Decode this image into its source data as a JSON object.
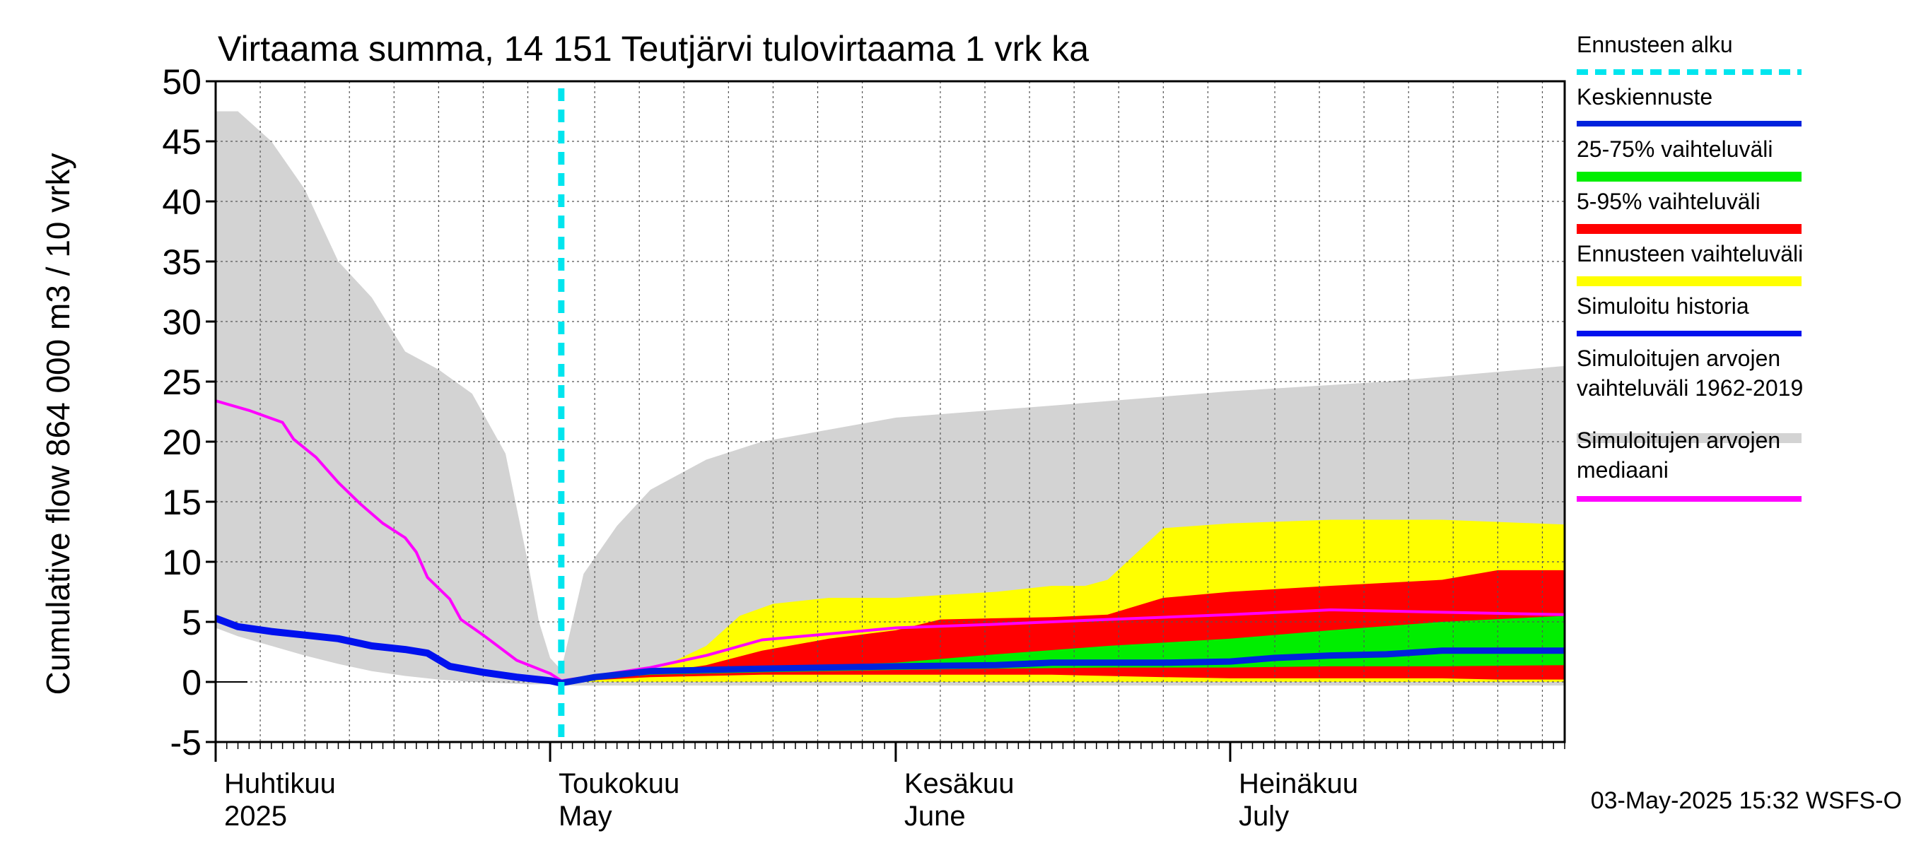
{
  "chart_data": {
    "type": "area",
    "title": "Virtaama summa, 14 151 Teutjärvi tulovirtaama 1 vrk ka",
    "ylabel": "Cumulative flow    864 000 m3 / 10 vrky",
    "ylim": [
      -5,
      50
    ],
    "yticks": [
      -5,
      0,
      5,
      10,
      15,
      20,
      25,
      30,
      35,
      40,
      45,
      50
    ],
    "grid": true,
    "legend_position": "right",
    "x_domain": [
      "2025-04-01",
      "2025-07-31"
    ],
    "forecast_start": "2025-05-02",
    "month_labels": [
      {
        "date": "2025-04-01",
        "fi": "Huhtikuu",
        "en": "2025"
      },
      {
        "date": "2025-05-01",
        "fi": "Toukokuu",
        "en": "May"
      },
      {
        "date": "2025-06-01",
        "fi": "Kesäkuu",
        "en": "June"
      },
      {
        "date": "2025-07-01",
        "fi": "Heinäkuu",
        "en": "July"
      }
    ],
    "timestamp": "03-May-2025 15:32 WSFS-O",
    "legend": [
      {
        "key": "forecast_start",
        "label": "Ennusteen alku",
        "color": "#00e5ee",
        "style": "dashed"
      },
      {
        "key": "mean_forecast",
        "label": "Keskiennuste",
        "color": "#0022dd",
        "style": "line"
      },
      {
        "key": "p25_75",
        "label": "25-75% vaihteluväli",
        "color": "#00ee00",
        "style": "band"
      },
      {
        "key": "p5_95",
        "label": "5-95% vaihteluväli",
        "color": "#ff0000",
        "style": "band"
      },
      {
        "key": "forecast_range",
        "label": "Ennusteen vaihteluväli",
        "color": "#ffff00",
        "style": "band"
      },
      {
        "key": "sim_history",
        "label": "Simuloitu historia",
        "color": "#0011ee",
        "style": "line"
      },
      {
        "key": "hist_range",
        "label": "Simuloitujen arvojen vaihteluväli 1962-2019",
        "lines": [
          "Simuloitujen arvojen",
          "vaihteluväli 1962-2019"
        ],
        "color": "#d3d3d3",
        "style": "band"
      },
      {
        "key": "hist_median",
        "label": "Simuloitujen arvojen mediaani",
        "lines": [
          "Simuloitujen arvojen",
          "mediaani"
        ],
        "color": "#ff00ff",
        "style": "line"
      }
    ],
    "series": {
      "hist_range": {
        "x": [
          "2025-04-01",
          "2025-04-03",
          "2025-04-06",
          "2025-04-09",
          "2025-04-12",
          "2025-04-15",
          "2025-04-18",
          "2025-04-21",
          "2025-04-24",
          "2025-04-27",
          "2025-04-29",
          "2025-04-30",
          "2025-05-01",
          "2025-05-02",
          "2025-05-04",
          "2025-05-07",
          "2025-05-10",
          "2025-05-15",
          "2025-05-20",
          "2025-06-01",
          "2025-06-15",
          "2025-07-01",
          "2025-07-15",
          "2025-07-31"
        ],
        "upper": [
          47.5,
          47.5,
          45,
          41,
          35,
          32,
          27.5,
          26,
          24,
          19,
          10,
          5,
          2,
          1,
          9,
          13,
          16,
          18.5,
          20,
          22,
          23,
          24.2,
          25,
          26.3
        ],
        "lower": [
          4.5,
          3.8,
          3,
          2.2,
          1.5,
          0.9,
          0.5,
          0.2,
          0,
          -0.1,
          -0.2,
          -0.2,
          -0.2,
          -0.3,
          -0.3,
          -0.3,
          -0.3,
          -0.3,
          -0.3,
          -0.3,
          -0.3,
          -0.3,
          -0.3,
          -0.3
        ]
      },
      "forecast_range": {
        "x": [
          "2025-05-02",
          "2025-05-10",
          "2025-05-15",
          "2025-05-18",
          "2025-05-21",
          "2025-05-26",
          "2025-06-01",
          "2025-06-10",
          "2025-06-15",
          "2025-06-18",
          "2025-06-20",
          "2025-06-25",
          "2025-07-01",
          "2025-07-10",
          "2025-07-20",
          "2025-07-31"
        ],
        "upper": [
          0,
          0.8,
          3,
          5.5,
          6.5,
          7,
          7,
          7.5,
          8,
          8,
          8.5,
          12.8,
          13.2,
          13.5,
          13.5,
          13.1
        ],
        "lower": [
          0,
          0,
          0,
          0,
          0,
          0,
          0,
          0,
          0,
          0,
          0,
          0,
          0,
          0,
          0,
          0
        ]
      },
      "p5_95": {
        "x": [
          "2025-05-02",
          "2025-05-10",
          "2025-05-15",
          "2025-05-20",
          "2025-05-26",
          "2025-06-01",
          "2025-06-05",
          "2025-06-15",
          "2025-06-20",
          "2025-06-25",
          "2025-07-01",
          "2025-07-10",
          "2025-07-20",
          "2025-07-25",
          "2025-07-31"
        ],
        "upper": [
          0,
          0.7,
          1.4,
          2.6,
          3.6,
          4.3,
          5.2,
          5.4,
          5.6,
          7,
          7.5,
          8,
          8.5,
          9.3,
          9.3
        ],
        "lower": [
          0,
          0.4,
          0.5,
          0.6,
          0.6,
          0.6,
          0.6,
          0.6,
          0.5,
          0.4,
          0.3,
          0.3,
          0.3,
          0.2,
          0.2
        ]
      },
      "p25_75": {
        "x": [
          "2025-05-02",
          "2025-05-10",
          "2025-05-20",
          "2025-06-01",
          "2025-06-10",
          "2025-06-20",
          "2025-07-01",
          "2025-07-10",
          "2025-07-20",
          "2025-07-31"
        ],
        "upper": [
          0,
          0.9,
          1.2,
          1.6,
          2.3,
          3,
          3.6,
          4.3,
          5,
          5.5
        ],
        "lower": [
          0,
          0.6,
          0.8,
          1,
          1.1,
          1.2,
          1.2,
          1.3,
          1.3,
          1.4
        ]
      },
      "sim_history": {
        "x": [
          "2025-04-01",
          "2025-04-03",
          "2025-04-06",
          "2025-04-09",
          "2025-04-12",
          "2025-04-15",
          "2025-04-18",
          "2025-04-20",
          "2025-04-22",
          "2025-04-25",
          "2025-04-28",
          "2025-05-01",
          "2025-05-02"
        ],
        "y": [
          5.3,
          4.6,
          4.2,
          3.9,
          3.6,
          3,
          2.7,
          2.4,
          1.3,
          0.8,
          0.4,
          0.1,
          -0.1
        ]
      },
      "mean_forecast": {
        "x": [
          "2025-05-02",
          "2025-05-05",
          "2025-05-10",
          "2025-05-15",
          "2025-05-20",
          "2025-06-01",
          "2025-06-10",
          "2025-06-15",
          "2025-06-25",
          "2025-07-01",
          "2025-07-05",
          "2025-07-10",
          "2025-07-15",
          "2025-07-20",
          "2025-07-31"
        ],
        "y": [
          -0.1,
          0.4,
          0.9,
          1,
          1.1,
          1.3,
          1.4,
          1.6,
          1.6,
          1.7,
          2,
          2.2,
          2.3,
          2.6,
          2.6
        ]
      },
      "hist_median": {
        "x": [
          "2025-04-01",
          "2025-04-04",
          "2025-04-07",
          "2025-04-08",
          "2025-04-10",
          "2025-04-12",
          "2025-04-14",
          "2025-04_16",
          "2025-04-18",
          "2025-04-19",
          "2025-04-20",
          "2025-04-22",
          "2025-04-23",
          "2025-04-25",
          "2025-04-28",
          "2025-05-01",
          "2025-05-02",
          "2025-05-05",
          "2025-05-10",
          "2025-05-15",
          "2025-05-20",
          "2025-05-26",
          "2025-06-01",
          "2025-06-10",
          "2025-06-20",
          "2025-07-01",
          "2025-07-10",
          "2025-07-20",
          "2025-07-31"
        ],
        "y": [
          23.4,
          22.6,
          21.6,
          20.2,
          18.7,
          16.6,
          14.8,
          13.2,
          12,
          10.8,
          8.7,
          6.9,
          5.2,
          3.9,
          1.8,
          0.7,
          0.1,
          0.5,
          1.2,
          2.2,
          3.5,
          4,
          4.5,
          4.8,
          5.2,
          5.6,
          6,
          5.8,
          5.6
        ]
      }
    }
  }
}
